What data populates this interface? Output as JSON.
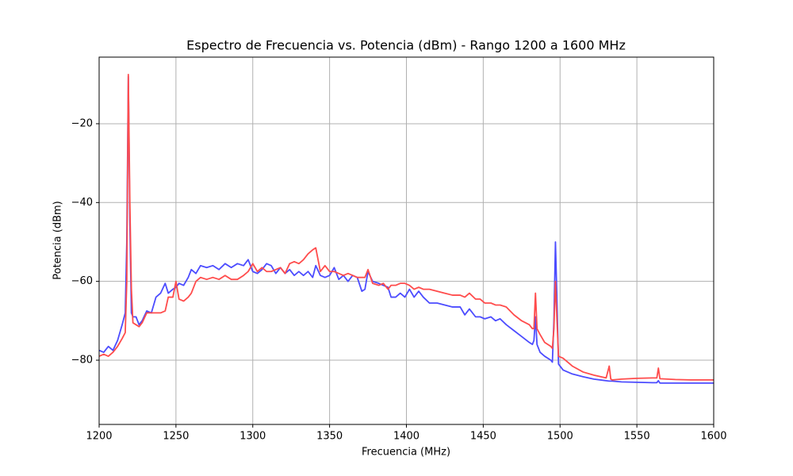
{
  "chart_data": {
    "type": "line",
    "title": "Espectro de Frecuencia vs. Potencia (dBm) - Rango 1200 a 1600 MHz",
    "x_label": "Frecuencia (MHz)",
    "y_label": "Potencia (dBm)",
    "x": [
      1200,
      1203,
      1206,
      1209,
      1212,
      1215,
      1217,
      1218,
      1219,
      1220,
      1221,
      1222,
      1224,
      1226,
      1228,
      1231,
      1234,
      1237,
      1240,
      1243,
      1245,
      1248,
      1250,
      1252,
      1255,
      1258,
      1260,
      1263,
      1266,
      1270,
      1274,
      1278,
      1282,
      1286,
      1290,
      1294,
      1297,
      1300,
      1303,
      1306,
      1309,
      1312,
      1315,
      1318,
      1321,
      1324,
      1327,
      1330,
      1333,
      1336,
      1339,
      1341,
      1344,
      1347,
      1350,
      1353,
      1356,
      1359,
      1362,
      1365,
      1368,
      1371,
      1373,
      1375,
      1378,
      1382,
      1385,
      1388,
      1390,
      1393,
      1396,
      1399,
      1402,
      1405,
      1408,
      1411,
      1415,
      1420,
      1425,
      1430,
      1435,
      1438,
      1441,
      1445,
      1448,
      1451,
      1455,
      1458,
      1461,
      1465,
      1470,
      1475,
      1480,
      1482,
      1483,
      1484,
      1485,
      1487,
      1490,
      1494,
      1495,
      1496,
      1497,
      1498,
      1499,
      1502,
      1508,
      1515,
      1522,
      1530,
      1532,
      1533,
      1534,
      1540,
      1550,
      1560,
      1563,
      1564,
      1565,
      1575,
      1585,
      1600
    ],
    "series": [
      {
        "color": "#4c4cff",
        "values": [
          -77.5,
          -78,
          -76.5,
          -77.5,
          -75,
          -71,
          -68,
          -50,
          -8,
          -45,
          -68,
          -69,
          -69,
          -71,
          -70,
          -67.5,
          -68,
          -64,
          -63,
          -60.5,
          -63,
          -62,
          -61.5,
          -60.5,
          -61,
          -59,
          -57,
          -58,
          -56,
          -56.5,
          -56,
          -57,
          -55.5,
          -56.5,
          -55.5,
          -56,
          -54.5,
          -57.5,
          -58,
          -57,
          -55.5,
          -56,
          -58,
          -56.5,
          -58,
          -57,
          -58.5,
          -57.5,
          -58.5,
          -57.5,
          -59,
          -56,
          -58.5,
          -59,
          -58.5,
          -56.5,
          -59.5,
          -58.5,
          -60,
          -58.5,
          -59,
          -62.5,
          -62,
          -57.5,
          -60,
          -60.5,
          -61,
          -61.5,
          -64,
          -64,
          -63,
          -64,
          -62,
          -64,
          -62.5,
          -64,
          -65.5,
          -65.5,
          -66,
          -66.5,
          -66.5,
          -68.5,
          -67,
          -69,
          -69,
          -69.5,
          -69,
          -70,
          -69.5,
          -71,
          -72.5,
          -74,
          -75.5,
          -76,
          -75,
          -69,
          -76,
          -78,
          -79,
          -80,
          -80.5,
          -70,
          -50,
          -65,
          -81,
          -82.5,
          -83.5,
          -84.2,
          -84.8,
          -85.2,
          -85.3,
          -85.3,
          -85.3,
          -85.5,
          -85.6,
          -85.7,
          -85.7,
          -85.2,
          -85.8,
          -85.8,
          -85.8,
          -85.8
        ]
      },
      {
        "color": "#ff4c4c",
        "values": [
          -79,
          -78.5,
          -79,
          -78,
          -76.5,
          -74.5,
          -73,
          -60,
          -7.5,
          -40,
          -62,
          -70.5,
          -71,
          -71.5,
          -70.5,
          -68,
          -68,
          -68,
          -68,
          -67.5,
          -64,
          -64,
          -60,
          -64.5,
          -65,
          -64,
          -63,
          -60,
          -59,
          -59.5,
          -59,
          -59.5,
          -58.5,
          -59.5,
          -59.5,
          -58.5,
          -57.5,
          -55.5,
          -57.5,
          -56.5,
          -57.5,
          -57.5,
          -57,
          -56.5,
          -58,
          -55.5,
          -55,
          -55.5,
          -54.5,
          -53,
          -52,
          -51.5,
          -57.5,
          -56,
          -57.5,
          -57.5,
          -58,
          -58.5,
          -58,
          -58.5,
          -59,
          -59,
          -59,
          -57,
          -60.5,
          -61,
          -60.5,
          -62,
          -61,
          -61,
          -60.5,
          -60.5,
          -61,
          -62,
          -61.5,
          -62,
          -62,
          -62.5,
          -63,
          -63.5,
          -63.5,
          -64,
          -63,
          -64.5,
          -64.5,
          -65.5,
          -65.5,
          -66,
          -66,
          -66.5,
          -68.5,
          -70,
          -71,
          -72,
          -72,
          -63,
          -72,
          -73.5,
          -75.5,
          -76.5,
          -77,
          -72,
          -60,
          -70,
          -79,
          -79.5,
          -81.5,
          -83,
          -83.8,
          -84.5,
          -81.5,
          -84.8,
          -85,
          -84.8,
          -84.6,
          -84.5,
          -84.5,
          -82,
          -84.7,
          -84.9,
          -85,
          -85
        ]
      }
    ],
    "xlim": [
      1200,
      1600
    ],
    "xticks": [
      1200,
      1250,
      1300,
      1350,
      1400,
      1450,
      1500,
      1550,
      1600
    ],
    "ylim": [
      -96.3,
      -3.1
    ],
    "yticks": [
      {
        "value": -80,
        "label": "−80"
      },
      {
        "value": -60,
        "label": "−60"
      },
      {
        "value": -40,
        "label": "−40"
      },
      {
        "value": -20,
        "label": "−20"
      }
    ],
    "grid": true
  }
}
